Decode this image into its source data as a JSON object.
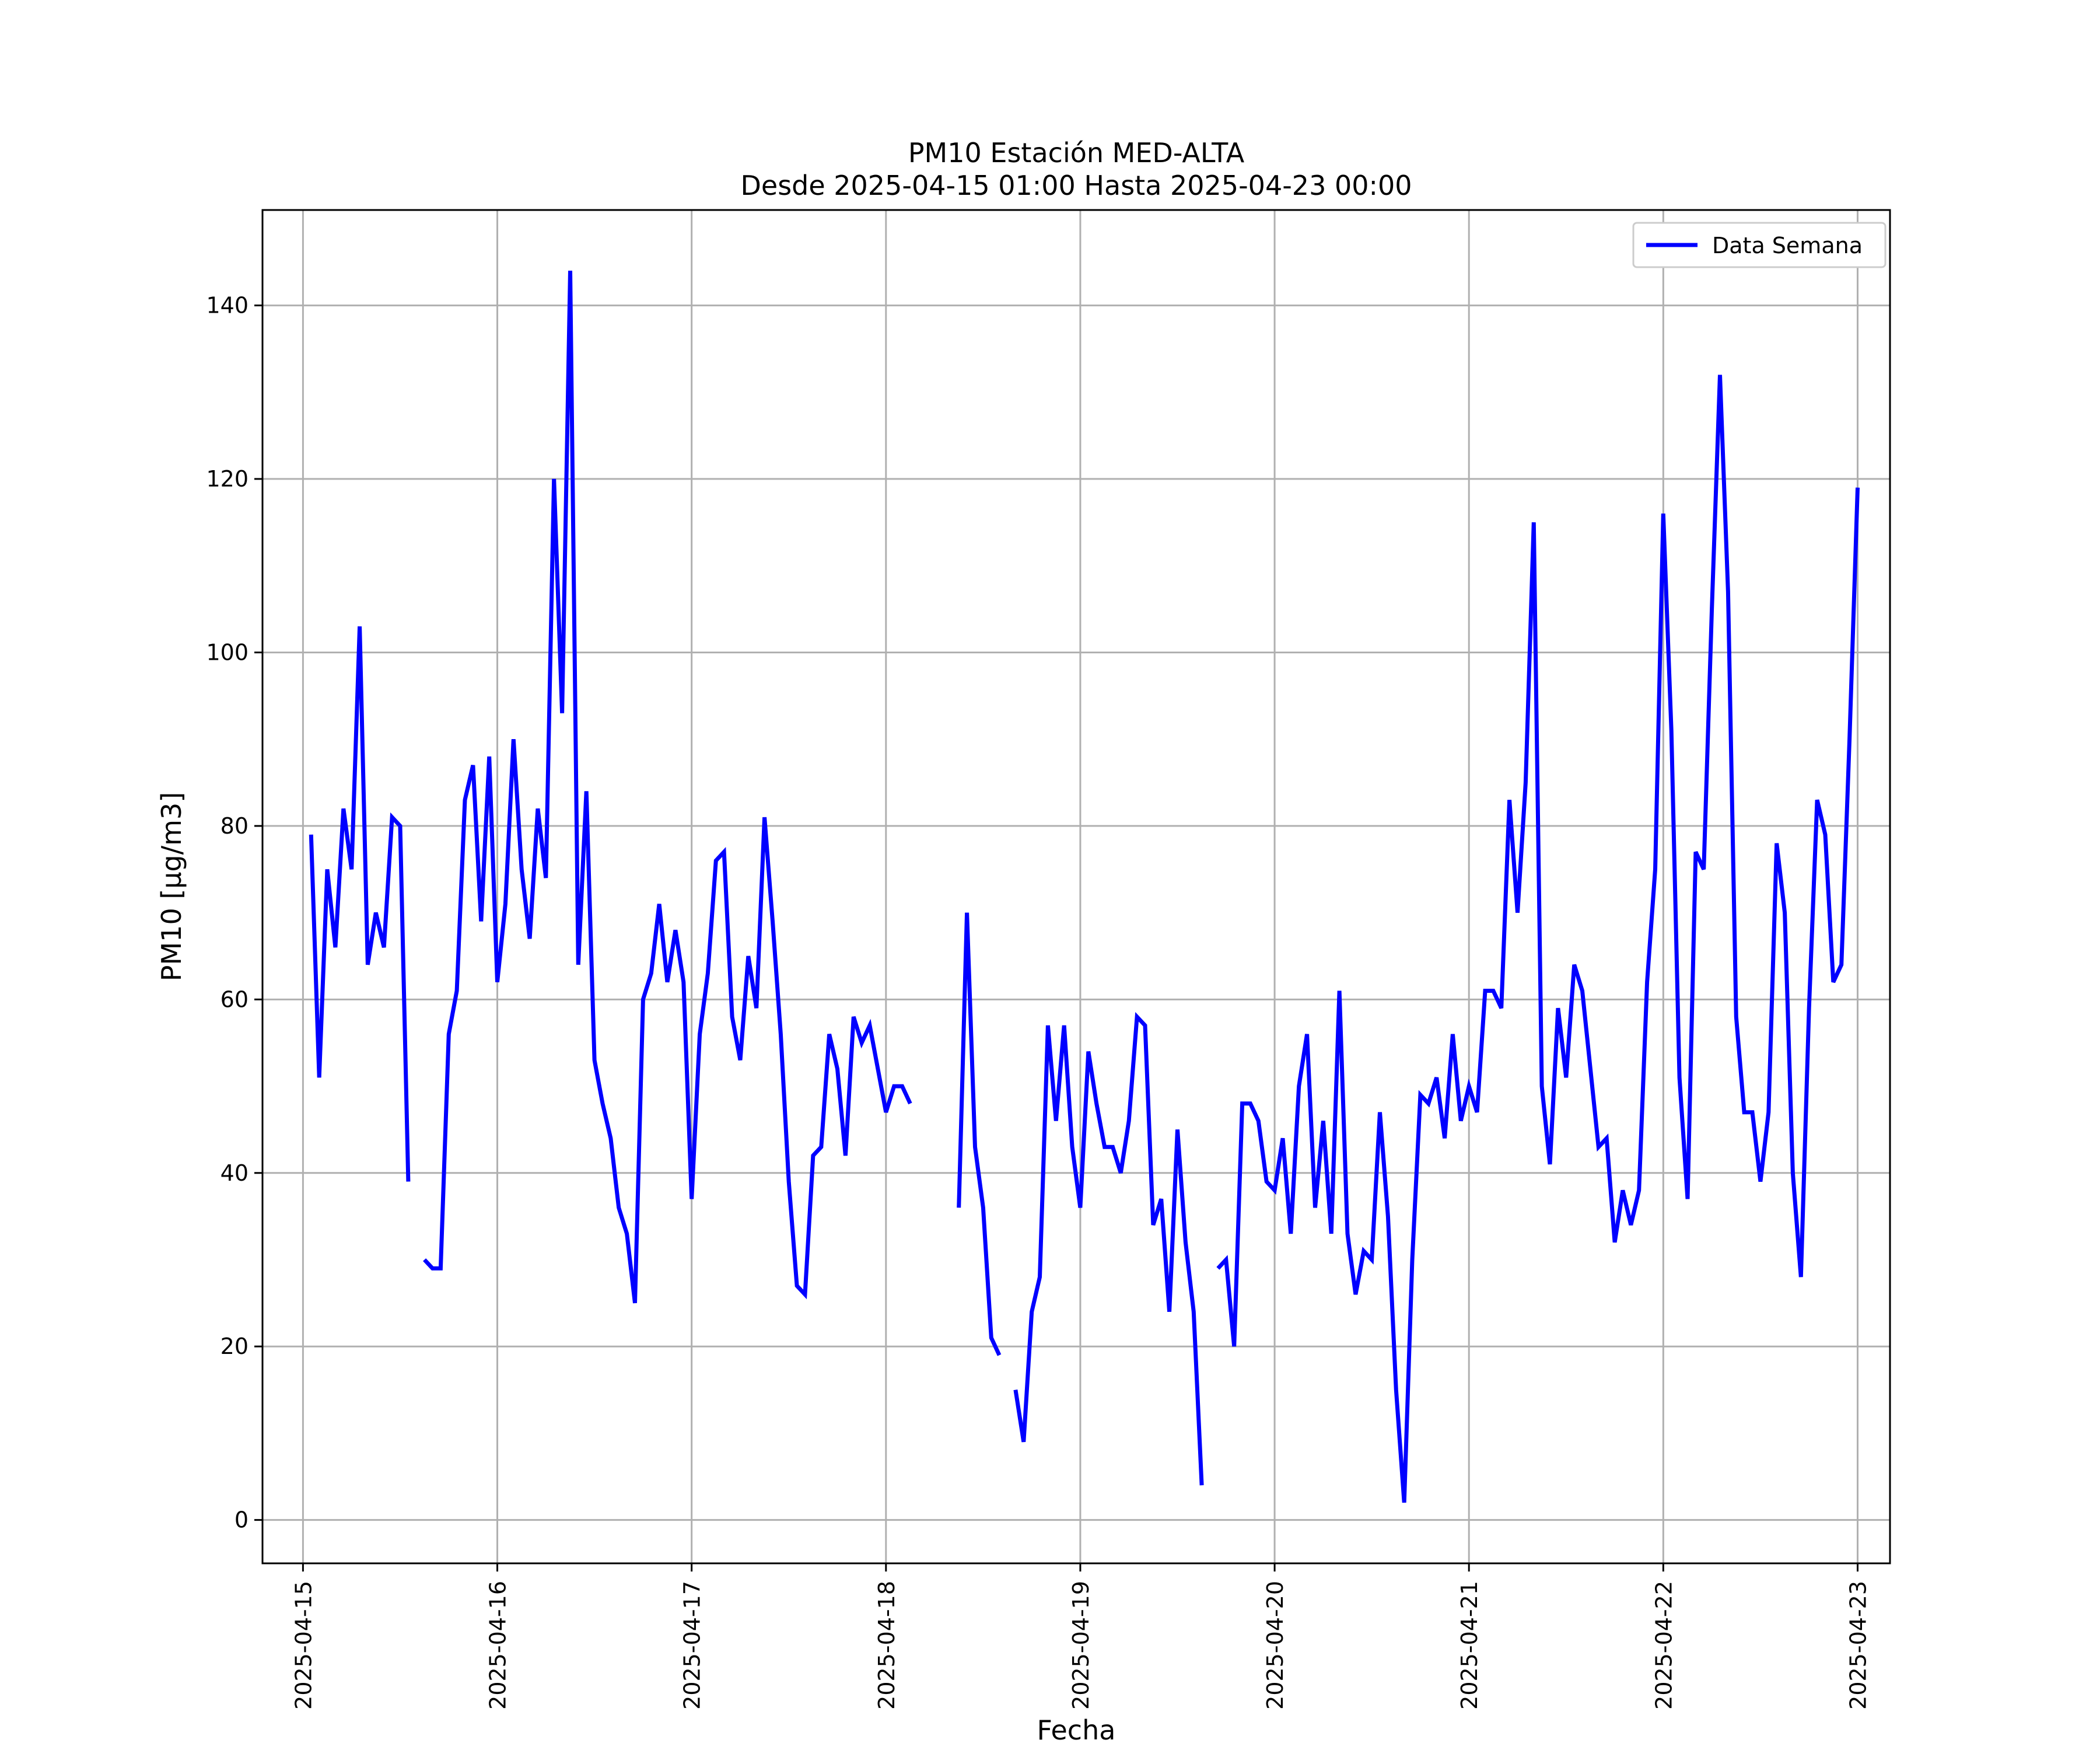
{
  "chart_data": {
    "type": "line",
    "title": "PM10 Estación MED-ALTA",
    "subtitle": "Desde 2025-04-15 01:00 Hasta 2025-04-23 00:00",
    "xlabel": "Fecha",
    "ylabel": "PM10 [μg/m3]",
    "xlim": [
      "2025-04-14 19:00",
      "2025-04-23 04:00"
    ],
    "ylim": [
      -5,
      151
    ],
    "x_ticks": [
      "2025-04-15",
      "2025-04-16",
      "2025-04-17",
      "2025-04-18",
      "2025-04-19",
      "2025-04-20",
      "2025-04-21",
      "2025-04-22",
      "2025-04-23"
    ],
    "y_ticks": [
      0,
      20,
      40,
      60,
      80,
      100,
      120,
      140
    ],
    "grid": true,
    "legend": {
      "position": "top-right",
      "entries": [
        "Data Semana"
      ]
    },
    "colors": {
      "line": "#0000ff",
      "grid": "#b0b0b0",
      "frame": "#000000"
    },
    "series": [
      {
        "name": "Data Semana",
        "points": [
          [
            "2025-04-15 01:00",
            79
          ],
          [
            "2025-04-15 02:00",
            51
          ],
          [
            "2025-04-15 03:00",
            75
          ],
          [
            "2025-04-15 04:00",
            66
          ],
          [
            "2025-04-15 05:00",
            82
          ],
          [
            "2025-04-15 06:00",
            75
          ],
          [
            "2025-04-15 07:00",
            103
          ],
          [
            "2025-04-15 08:00",
            64
          ],
          [
            "2025-04-15 09:00",
            70
          ],
          [
            "2025-04-15 10:00",
            66
          ],
          [
            "2025-04-15 11:00",
            81
          ],
          [
            "2025-04-15 12:00",
            80
          ],
          [
            "2025-04-15 13:00",
            39
          ],
          [
            "2025-04-15 14:00",
            null
          ],
          [
            "2025-04-15 15:00",
            30
          ],
          [
            "2025-04-15 16:00",
            29
          ],
          [
            "2025-04-15 17:00",
            29
          ],
          [
            "2025-04-15 18:00",
            56
          ],
          [
            "2025-04-15 19:00",
            61
          ],
          [
            "2025-04-15 20:00",
            83
          ],
          [
            "2025-04-15 21:00",
            87
          ],
          [
            "2025-04-15 22:00",
            69
          ],
          [
            "2025-04-15 23:00",
            88
          ],
          [
            "2025-04-16 00:00",
            62
          ],
          [
            "2025-04-16 01:00",
            71
          ],
          [
            "2025-04-16 02:00",
            90
          ],
          [
            "2025-04-16 03:00",
            75
          ],
          [
            "2025-04-16 04:00",
            67
          ],
          [
            "2025-04-16 05:00",
            82
          ],
          [
            "2025-04-16 06:00",
            74
          ],
          [
            "2025-04-16 07:00",
            120
          ],
          [
            "2025-04-16 08:00",
            93
          ],
          [
            "2025-04-16 09:00",
            144
          ],
          [
            "2025-04-16 10:00",
            64
          ],
          [
            "2025-04-16 11:00",
            84
          ],
          [
            "2025-04-16 12:00",
            53
          ],
          [
            "2025-04-16 13:00",
            48
          ],
          [
            "2025-04-16 14:00",
            44
          ],
          [
            "2025-04-16 15:00",
            36
          ],
          [
            "2025-04-16 16:00",
            33
          ],
          [
            "2025-04-16 17:00",
            25
          ],
          [
            "2025-04-16 18:00",
            60
          ],
          [
            "2025-04-16 19:00",
            63
          ],
          [
            "2025-04-16 20:00",
            71
          ],
          [
            "2025-04-16 21:00",
            62
          ],
          [
            "2025-04-16 22:00",
            68
          ],
          [
            "2025-04-16 23:00",
            62
          ],
          [
            "2025-04-17 00:00",
            37
          ],
          [
            "2025-04-17 01:00",
            56
          ],
          [
            "2025-04-17 02:00",
            63
          ],
          [
            "2025-04-17 03:00",
            76
          ],
          [
            "2025-04-17 04:00",
            77
          ],
          [
            "2025-04-17 05:00",
            58
          ],
          [
            "2025-04-17 06:00",
            53
          ],
          [
            "2025-04-17 07:00",
            65
          ],
          [
            "2025-04-17 08:00",
            59
          ],
          [
            "2025-04-17 09:00",
            81
          ],
          [
            "2025-04-17 10:00",
            69
          ],
          [
            "2025-04-17 11:00",
            56
          ],
          [
            "2025-04-17 12:00",
            39
          ],
          [
            "2025-04-17 13:00",
            27
          ],
          [
            "2025-04-17 14:00",
            26
          ],
          [
            "2025-04-17 15:00",
            42
          ],
          [
            "2025-04-17 16:00",
            43
          ],
          [
            "2025-04-17 17:00",
            56
          ],
          [
            "2025-04-17 18:00",
            52
          ],
          [
            "2025-04-17 19:00",
            42
          ],
          [
            "2025-04-17 20:00",
            58
          ],
          [
            "2025-04-17 21:00",
            55
          ],
          [
            "2025-04-17 22:00",
            57
          ],
          [
            "2025-04-17 23:00",
            52
          ],
          [
            "2025-04-18 00:00",
            47
          ],
          [
            "2025-04-18 01:00",
            50
          ],
          [
            "2025-04-18 02:00",
            50
          ],
          [
            "2025-04-18 03:00",
            48
          ],
          [
            "2025-04-18 04:00",
            null
          ],
          [
            "2025-04-18 09:00",
            36
          ],
          [
            "2025-04-18 10:00",
            70
          ],
          [
            "2025-04-18 11:00",
            43
          ],
          [
            "2025-04-18 12:00",
            36
          ],
          [
            "2025-04-18 13:00",
            21
          ],
          [
            "2025-04-18 14:00",
            19
          ],
          [
            "2025-04-18 15:00",
            null
          ],
          [
            "2025-04-18 16:00",
            15
          ],
          [
            "2025-04-18 17:00",
            9
          ],
          [
            "2025-04-18 18:00",
            24
          ],
          [
            "2025-04-18 19:00",
            28
          ],
          [
            "2025-04-18 20:00",
            57
          ],
          [
            "2025-04-18 21:00",
            46
          ],
          [
            "2025-04-18 22:00",
            57
          ],
          [
            "2025-04-18 23:00",
            43
          ],
          [
            "2025-04-19 00:00",
            36
          ],
          [
            "2025-04-19 01:00",
            54
          ],
          [
            "2025-04-19 02:00",
            48
          ],
          [
            "2025-04-19 03:00",
            43
          ],
          [
            "2025-04-19 04:00",
            43
          ],
          [
            "2025-04-19 05:00",
            40
          ],
          [
            "2025-04-19 06:00",
            46
          ],
          [
            "2025-04-19 07:00",
            58
          ],
          [
            "2025-04-19 08:00",
            57
          ],
          [
            "2025-04-19 09:00",
            34
          ],
          [
            "2025-04-19 10:00",
            37
          ],
          [
            "2025-04-19 11:00",
            24
          ],
          [
            "2025-04-19 12:00",
            45
          ],
          [
            "2025-04-19 13:00",
            32
          ],
          [
            "2025-04-19 14:00",
            24
          ],
          [
            "2025-04-19 15:00",
            4
          ],
          [
            "2025-04-19 16:00",
            null
          ],
          [
            "2025-04-19 17:00",
            29
          ],
          [
            "2025-04-19 18:00",
            30
          ],
          [
            "2025-04-19 19:00",
            20
          ],
          [
            "2025-04-19 20:00",
            48
          ],
          [
            "2025-04-19 21:00",
            48
          ],
          [
            "2025-04-19 22:00",
            46
          ],
          [
            "2025-04-19 23:00",
            39
          ],
          [
            "2025-04-20 00:00",
            38
          ],
          [
            "2025-04-20 01:00",
            44
          ],
          [
            "2025-04-20 02:00",
            33
          ],
          [
            "2025-04-20 03:00",
            50
          ],
          [
            "2025-04-20 04:00",
            56
          ],
          [
            "2025-04-20 05:00",
            36
          ],
          [
            "2025-04-20 06:00",
            46
          ],
          [
            "2025-04-20 07:00",
            33
          ],
          [
            "2025-04-20 08:00",
            61
          ],
          [
            "2025-04-20 09:00",
            33
          ],
          [
            "2025-04-20 10:00",
            26
          ],
          [
            "2025-04-20 11:00",
            31
          ],
          [
            "2025-04-20 12:00",
            30
          ],
          [
            "2025-04-20 13:00",
            47
          ],
          [
            "2025-04-20 14:00",
            35
          ],
          [
            "2025-04-20 15:00",
            15
          ],
          [
            "2025-04-20 16:00",
            2
          ],
          [
            "2025-04-20 17:00",
            30
          ],
          [
            "2025-04-20 18:00",
            49
          ],
          [
            "2025-04-20 19:00",
            48
          ],
          [
            "2025-04-20 20:00",
            51
          ],
          [
            "2025-04-20 21:00",
            44
          ],
          [
            "2025-04-20 22:00",
            56
          ],
          [
            "2025-04-20 23:00",
            46
          ],
          [
            "2025-04-21 00:00",
            50
          ],
          [
            "2025-04-21 01:00",
            47
          ],
          [
            "2025-04-21 02:00",
            61
          ],
          [
            "2025-04-21 03:00",
            61
          ],
          [
            "2025-04-21 04:00",
            59
          ],
          [
            "2025-04-21 05:00",
            83
          ],
          [
            "2025-04-21 06:00",
            70
          ],
          [
            "2025-04-21 07:00",
            85
          ],
          [
            "2025-04-21 08:00",
            115
          ],
          [
            "2025-04-21 09:00",
            50
          ],
          [
            "2025-04-21 10:00",
            41
          ],
          [
            "2025-04-21 11:00",
            59
          ],
          [
            "2025-04-21 12:00",
            51
          ],
          [
            "2025-04-21 13:00",
            64
          ],
          [
            "2025-04-21 14:00",
            61
          ],
          [
            "2025-04-21 15:00",
            52
          ],
          [
            "2025-04-21 16:00",
            43
          ],
          [
            "2025-04-21 17:00",
            44
          ],
          [
            "2025-04-21 18:00",
            32
          ],
          [
            "2025-04-21 19:00",
            38
          ],
          [
            "2025-04-21 20:00",
            34
          ],
          [
            "2025-04-21 21:00",
            38
          ],
          [
            "2025-04-21 22:00",
            62
          ],
          [
            "2025-04-21 23:00",
            75
          ],
          [
            "2025-04-22 00:00",
            116
          ],
          [
            "2025-04-22 01:00",
            91
          ],
          [
            "2025-04-22 02:00",
            51
          ],
          [
            "2025-04-22 03:00",
            37
          ],
          [
            "2025-04-22 04:00",
            77
          ],
          [
            "2025-04-22 05:00",
            75
          ],
          [
            "2025-04-22 06:00",
            105
          ],
          [
            "2025-04-22 07:00",
            132
          ],
          [
            "2025-04-22 08:00",
            107
          ],
          [
            "2025-04-22 09:00",
            58
          ],
          [
            "2025-04-22 10:00",
            47
          ],
          [
            "2025-04-22 11:00",
            47
          ],
          [
            "2025-04-22 12:00",
            39
          ],
          [
            "2025-04-22 13:00",
            47
          ],
          [
            "2025-04-22 14:00",
            78
          ],
          [
            "2025-04-22 15:00",
            70
          ],
          [
            "2025-04-22 16:00",
            40
          ],
          [
            "2025-04-22 17:00",
            28
          ],
          [
            "2025-04-22 18:00",
            59
          ],
          [
            "2025-04-22 19:00",
            83
          ],
          [
            "2025-04-22 20:00",
            79
          ],
          [
            "2025-04-22 21:00",
            62
          ],
          [
            "2025-04-22 22:00",
            64
          ],
          [
            "2025-04-22 23:00",
            90
          ],
          [
            "2025-04-23 00:00",
            119
          ]
        ]
      }
    ]
  }
}
